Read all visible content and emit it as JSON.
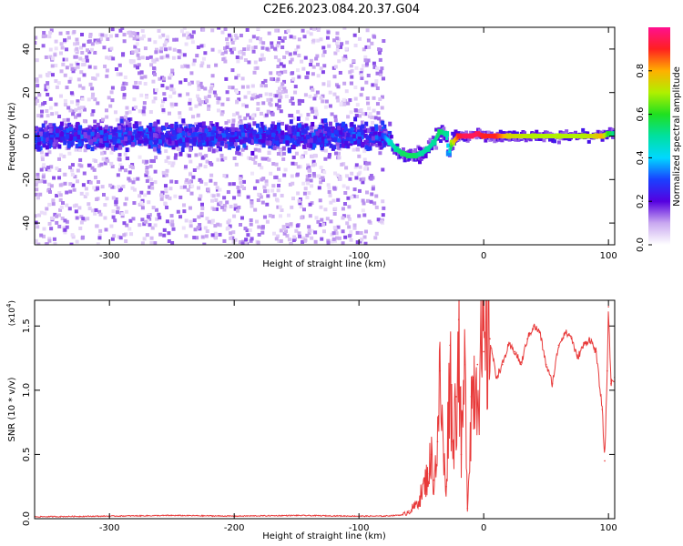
{
  "title": "C2E6.2023.084.20.37.G04",
  "chart_data": [
    {
      "type": "heatmap",
      "xlabel": "Height of straight line (km)",
      "ylabel": "Frequency (Hz)",
      "xlim": [
        -360,
        105
      ],
      "ylim": [
        -50,
        50
      ],
      "x_ticks": [
        -300,
        -200,
        -100,
        0,
        100
      ],
      "x_tick_labels": [
        "-300",
        "-200",
        "-100",
        "0",
        "100"
      ],
      "y_ticks": [
        -40,
        -20,
        0,
        20,
        40
      ],
      "y_tick_labels": [
        "-40",
        "-20",
        "0",
        "20",
        "40"
      ],
      "colorbar": {
        "label": "Normalized spectral amplitude",
        "range": [
          0,
          1
        ],
        "ticks": [
          0.0,
          0.2,
          0.4,
          0.6,
          0.8
        ],
        "tick_labels": [
          "0.0",
          "0.2",
          "0.4",
          "0.6",
          "0.8"
        ]
      },
      "ridge": {
        "x": [
          -360,
          -80,
          -75,
          -70,
          -65,
          -60,
          -55,
          -50,
          -45,
          -40,
          -35,
          -30,
          -28,
          -25,
          -20,
          -15,
          -10,
          -5,
          0,
          10,
          20,
          40,
          60,
          80,
          90,
          95,
          100,
          105
        ],
        "frequency": [
          0,
          0,
          -3,
          -6,
          -8,
          -9,
          -9,
          -8,
          -6,
          -3,
          2,
          1,
          -8,
          -3,
          0,
          0,
          0,
          1,
          0,
          0,
          0,
          0,
          0,
          0,
          0,
          0,
          1,
          1
        ],
        "amplitude": [
          0.3,
          0.3,
          0.45,
          0.5,
          0.55,
          0.55,
          0.55,
          0.5,
          0.5,
          0.5,
          0.55,
          0.5,
          0.35,
          0.7,
          0.9,
          0.95,
          0.95,
          0.95,
          0.9,
          0.9,
          0.75,
          0.7,
          0.7,
          0.7,
          0.75,
          0.8,
          0.6,
          0.5
        ]
      }
    },
    {
      "type": "line",
      "xlabel": "Height of straight line (km)",
      "ylabel": "SNR (10 * v/v)",
      "y_scale_label": "(x10",
      "y_scale_exponent": "4",
      "xlim": [
        -360,
        105
      ],
      "ylim": [
        0,
        1.7
      ],
      "x_ticks": [
        -300,
        -200,
        -100,
        0,
        100
      ],
      "x_tick_labels": [
        "-300",
        "-200",
        "-100",
        "0",
        "100"
      ],
      "y_ticks": [
        0.0,
        0.5,
        1.0,
        1.5
      ],
      "y_tick_labels": [
        "0.0",
        "0.5",
        "1.0",
        "1.5"
      ],
      "line_color": "#e83a3a",
      "series": [
        {
          "x": [
            -360,
            -300,
            -250,
            -200,
            -150,
            -100,
            -80,
            -65,
            -60,
            -55,
            -50,
            -45,
            -42,
            -40,
            -37,
            -35,
            -32,
            -30,
            -27,
            -25,
            -22,
            -20,
            -18,
            -15,
            -13,
            -10,
            -8,
            -5,
            0,
            5,
            10,
            15,
            20,
            25,
            30,
            35,
            40,
            45,
            50,
            55,
            60,
            65,
            70,
            75,
            80,
            85,
            90,
            95,
            97,
            99,
            100,
            102,
            105
          ],
          "y": [
            0.015,
            0.02,
            0.025,
            0.02,
            0.025,
            0.02,
            0.02,
            0.03,
            0.06,
            0.1,
            0.2,
            0.35,
            0.5,
            0.3,
            0.6,
            1.15,
            0.45,
            0.25,
            1.35,
            0.6,
            0.95,
            1.55,
            0.5,
            1.2,
            0.08,
            0.95,
            1.1,
            1.2,
            1.3,
            1.4,
            1.1,
            1.2,
            1.35,
            1.3,
            1.2,
            1.4,
            1.5,
            1.45,
            1.2,
            1.05,
            1.35,
            1.45,
            1.42,
            1.25,
            1.35,
            1.4,
            1.3,
            0.85,
            0.45,
            1.15,
            1.65,
            1.05,
            1.1
          ]
        }
      ]
    }
  ]
}
